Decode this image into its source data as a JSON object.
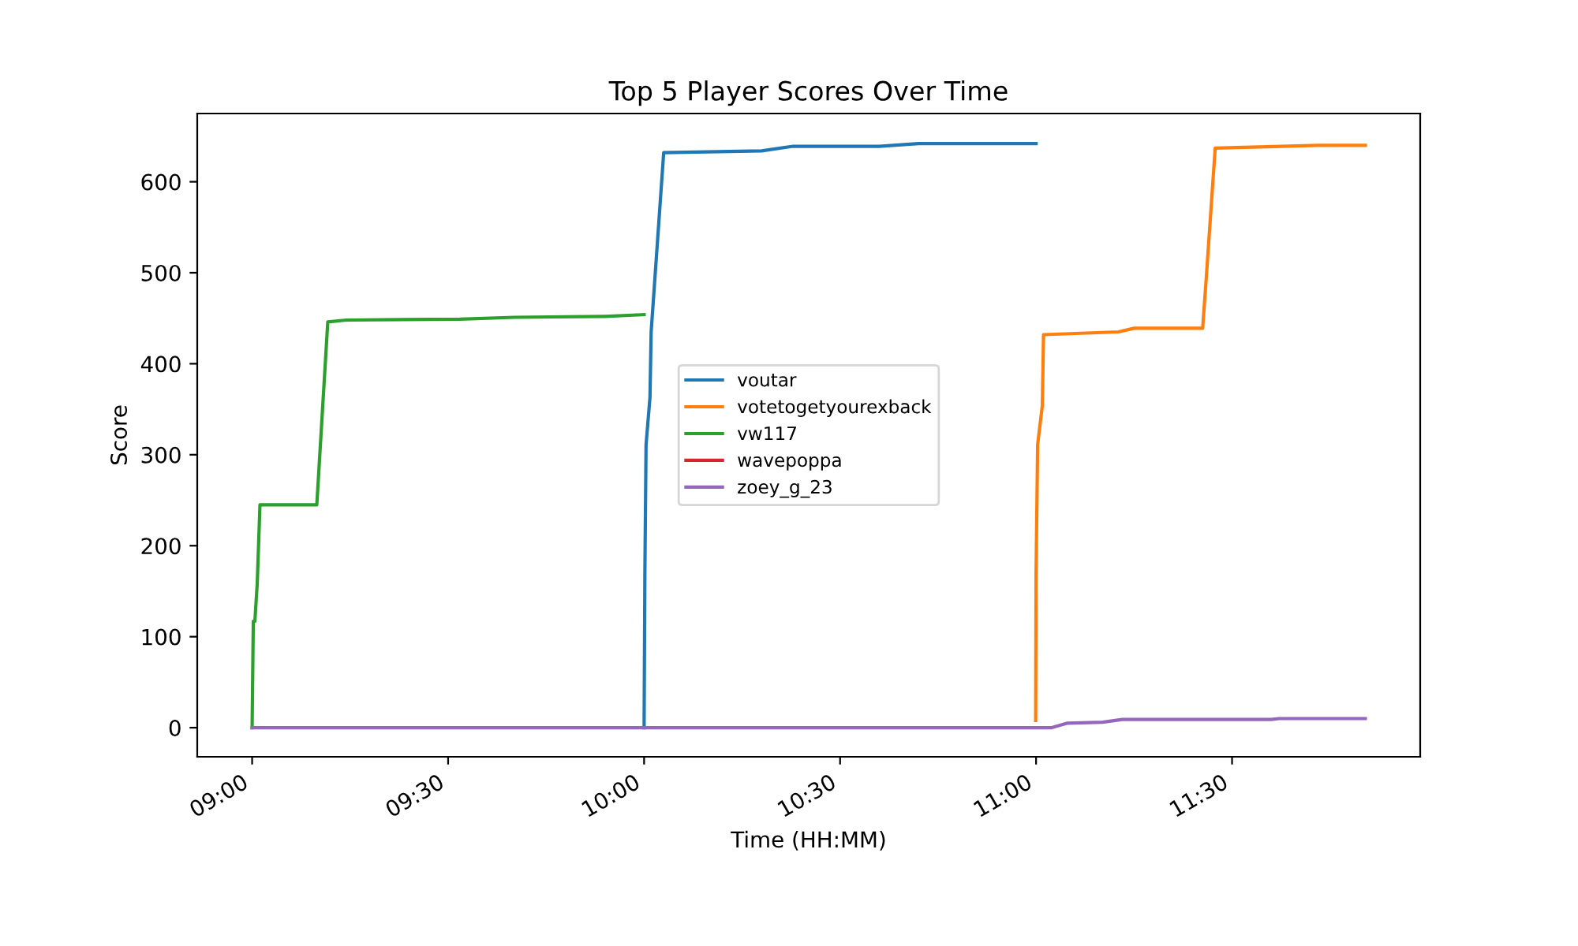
{
  "chart_data": {
    "type": "line",
    "title": "Top 5 Player Scores Over Time",
    "xlabel": "Time (HH:MM)",
    "ylabel": "Score",
    "xlim": [
      8.86,
      11.98
    ],
    "xticks": [
      {
        "value": 9,
        "label": "09:00"
      },
      {
        "value": 9.5,
        "label": "09:30"
      },
      {
        "value": 10,
        "label": "10:00"
      },
      {
        "value": 10.5,
        "label": "10:30"
      },
      {
        "value": 11,
        "label": "11:00"
      },
      {
        "value": 11.5,
        "label": "11:30"
      }
    ],
    "ylim": [
      -32,
      675
    ],
    "yticks": [
      0,
      100,
      200,
      300,
      400,
      500,
      600
    ],
    "grid": false,
    "legend": "center",
    "marker": "none",
    "line_style": "solid",
    "series": [
      {
        "name": "voutar",
        "color": "#1f77b4",
        "x": [
          10.0,
          10.002,
          10.005,
          10.015,
          10.018,
          10.05,
          10.3,
          10.38,
          10.6,
          10.7,
          11.0
        ],
        "values": [
          0,
          169,
          311,
          363,
          435,
          632,
          634,
          639,
          639,
          642,
          642
        ]
      },
      {
        "name": "votetogetyourexback",
        "color": "#ff7f0e",
        "x": [
          10.999,
          11.0,
          11.004,
          11.016,
          11.019,
          11.21,
          11.25,
          11.425,
          11.434,
          11.457,
          11.72,
          11.84
        ],
        "values": [
          8,
          169,
          311,
          354,
          432,
          435,
          439,
          439,
          493,
          637,
          640,
          640
        ]
      },
      {
        "name": "vw117",
        "color": "#2ca02c",
        "x": [
          9.0,
          9.003,
          9.007,
          9.013,
          9.02,
          9.165,
          9.193,
          9.24,
          9.53,
          9.67,
          9.9,
          10.0
        ],
        "values": [
          0,
          117,
          117,
          158,
          245,
          245,
          446,
          448,
          449,
          451,
          452,
          454
        ]
      },
      {
        "name": "wavepoppa",
        "color": "#d62728"
      },
      {
        "name": "zoey_g_23",
        "color": "#9467bd",
        "x": [
          9.0,
          11.0,
          11.04,
          11.08,
          11.17,
          11.22,
          11.6,
          11.62,
          11.84
        ],
        "values": [
          0,
          0,
          0,
          5,
          6,
          9,
          9,
          10,
          10
        ]
      }
    ]
  }
}
